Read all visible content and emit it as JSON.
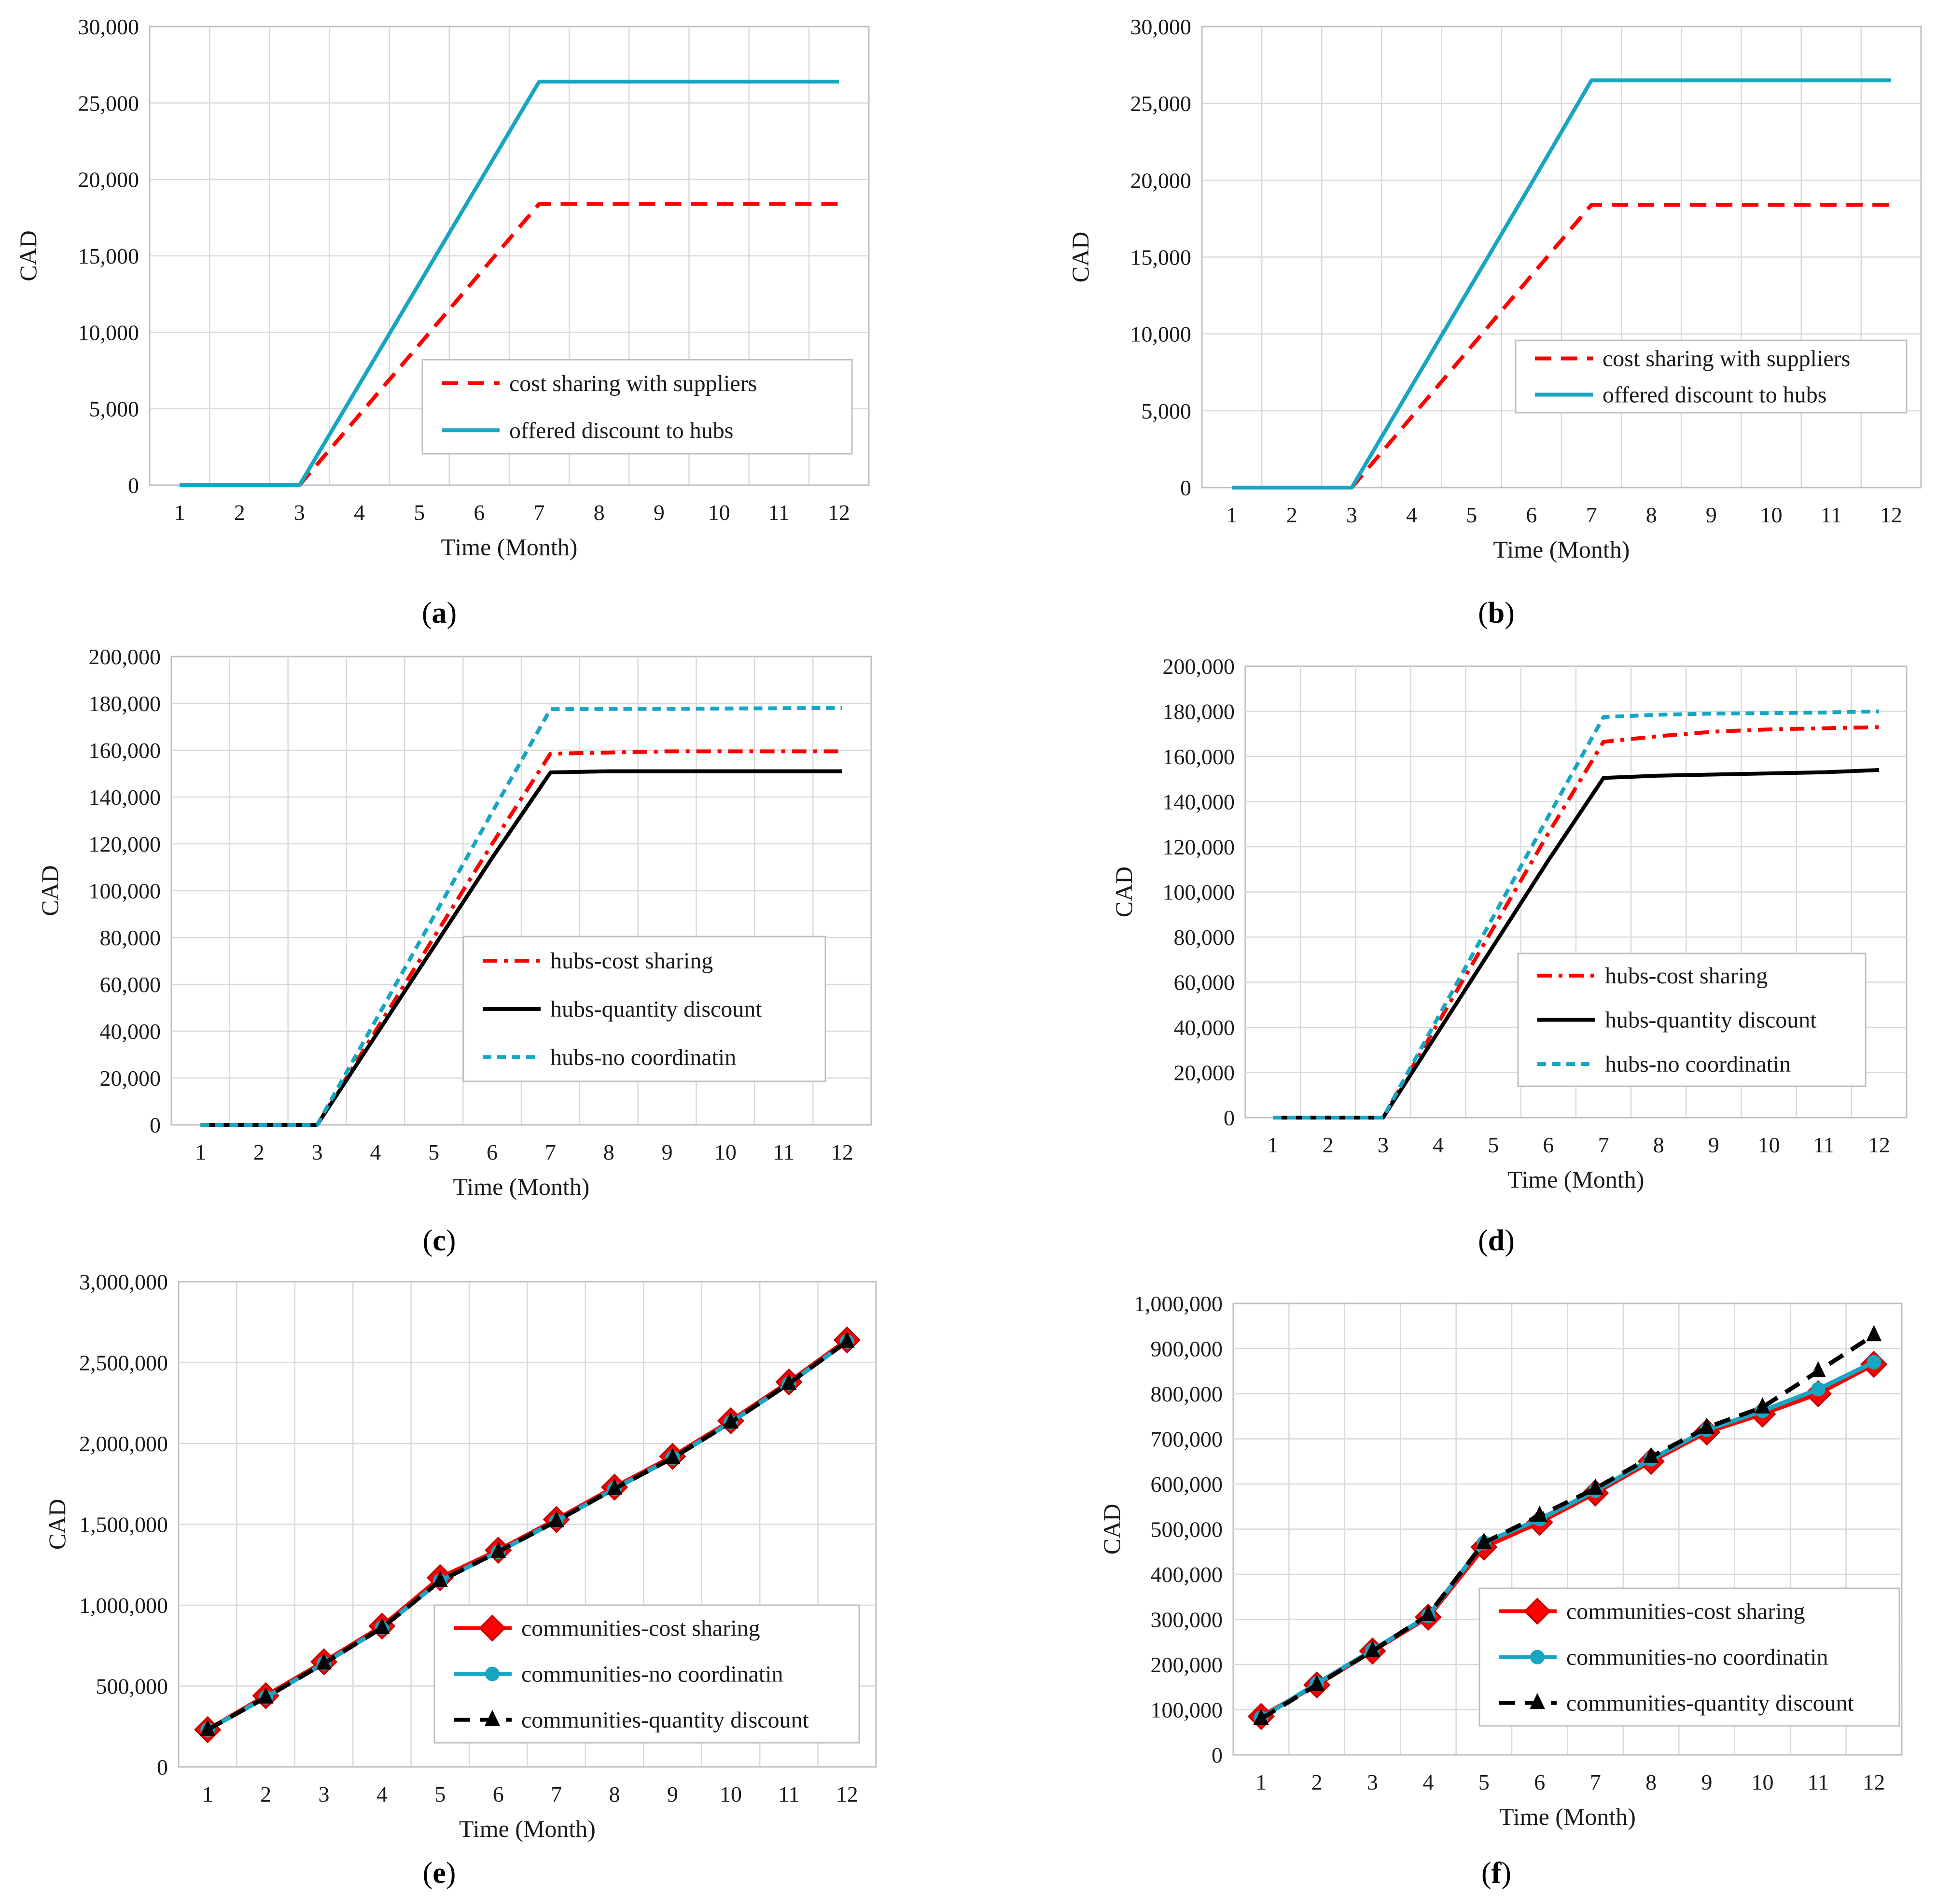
{
  "chart_data": [
    {
      "id": "a",
      "caption": "(a)",
      "caption_letter": "a",
      "type": "line",
      "xlabel": "Time (Month)",
      "ylabel": "CAD",
      "categories": [
        "1",
        "2",
        "3",
        "4",
        "5",
        "6",
        "7",
        "8",
        "9",
        "10",
        "11",
        "12"
      ],
      "ylim": [
        0,
        30000
      ],
      "yticks": [
        "0",
        "5,000",
        "10,000",
        "15,000",
        "20,000",
        "25,000",
        "30,000"
      ],
      "grid": true,
      "legend_position": "lower-right",
      "series": [
        {
          "name": "cost sharing with suppliers",
          "values": [
            0,
            0,
            0,
            4600,
            9200,
            13800,
            18400,
            18400,
            18400,
            18400,
            18400,
            18400
          ],
          "color": "#ff0000",
          "dash": "dashed",
          "marker": "none",
          "start_index": 2
        },
        {
          "name": "offered discount to hubs",
          "values": [
            0,
            0,
            0,
            6600,
            13200,
            19800,
            26400,
            26400,
            26400,
            26400,
            26400,
            26400
          ],
          "color": "#17a6c2",
          "dash": "solid",
          "marker": "none",
          "start_index": 0
        }
      ]
    },
    {
      "id": "b",
      "caption": "(b)",
      "caption_letter": "b",
      "type": "line",
      "xlabel": "Time (Month)",
      "ylabel": "CAD",
      "categories": [
        "1",
        "2",
        "3",
        "4",
        "5",
        "6",
        "7",
        "8",
        "9",
        "10",
        "11",
        "12"
      ],
      "ylim": [
        0,
        30000
      ],
      "yticks": [
        "0",
        "5,000",
        "10,000",
        "15,000",
        "20,000",
        "25,000",
        "30,000"
      ],
      "grid": true,
      "legend_position": "lower-right",
      "series": [
        {
          "name": "cost sharing with suppliers",
          "values": [
            0,
            0,
            0,
            4600,
            9200,
            13800,
            18400,
            18400,
            18400,
            18400,
            18400,
            18400
          ],
          "color": "#ff0000",
          "dash": "dashed",
          "marker": "none",
          "start_index": 2
        },
        {
          "name": "offered discount to hubs",
          "values": [
            0,
            0,
            0,
            6600,
            13200,
            19800,
            26500,
            26500,
            26500,
            26500,
            26500,
            26500
          ],
          "color": "#17a6c2",
          "dash": "solid",
          "marker": "none",
          "start_index": 0
        }
      ]
    },
    {
      "id": "c",
      "caption": "(c)",
      "caption_letter": "c",
      "type": "line",
      "xlabel": "Time (Month)",
      "ylabel": "CAD",
      "categories": [
        "1",
        "2",
        "3",
        "4",
        "5",
        "6",
        "7",
        "8",
        "9",
        "10",
        "11",
        "12"
      ],
      "ylim": [
        0,
        200000
      ],
      "yticks": [
        "0",
        "20,000",
        "40,000",
        "60,000",
        "80,000",
        "100,000",
        "120,000",
        "140,000",
        "160,000",
        "180,000",
        "200,000"
      ],
      "grid": true,
      "legend_position": "lower-right",
      "series": [
        {
          "name": "hubs-cost sharing",
          "values": [
            0,
            0,
            0,
            40000,
            80000,
            120000,
            158500,
            159000,
            159500,
            159500,
            159500,
            159500
          ],
          "color": "#ff0000",
          "dash": "dashdot",
          "marker": "none",
          "start_index": 0
        },
        {
          "name": "hubs-quantity discount",
          "values": [
            0,
            0,
            0,
            38000,
            76000,
            114000,
            150500,
            151000,
            151000,
            151000,
            151000,
            151000
          ],
          "color": "#000000",
          "dash": "solid",
          "marker": "none",
          "start_index": 0
        },
        {
          "name": "hubs-no coordinatin",
          "values": [
            0,
            0,
            0,
            44500,
            89000,
            133500,
            177500,
            177600,
            177700,
            177800,
            177900,
            178000
          ],
          "color": "#17a6c2",
          "dash": "dotted",
          "marker": "none",
          "start_index": 0
        }
      ]
    },
    {
      "id": "d",
      "caption": "(d)",
      "caption_letter": "d",
      "type": "line",
      "xlabel": "Time (Month)",
      "ylabel": "CAD",
      "categories": [
        "1",
        "2",
        "3",
        "4",
        "5",
        "6",
        "7",
        "8",
        "9",
        "10",
        "11",
        "12"
      ],
      "ylim": [
        0,
        200000
      ],
      "yticks": [
        "0",
        "20,000",
        "40,000",
        "60,000",
        "80,000",
        "100,000",
        "120,000",
        "140,000",
        "160,000",
        "180,000",
        "200,000"
      ],
      "grid": true,
      "legend_position": "lower-right",
      "series": [
        {
          "name": "hubs-cost sharing",
          "values": [
            0,
            0,
            0,
            42000,
            84000,
            126000,
            166500,
            169000,
            171000,
            172000,
            172500,
            173000
          ],
          "color": "#ff0000",
          "dash": "dashdot",
          "marker": "none",
          "start_index": 0
        },
        {
          "name": "hubs-quantity discount",
          "values": [
            0,
            0,
            0,
            38000,
            76000,
            114000,
            150500,
            151500,
            152000,
            152500,
            153000,
            154000
          ],
          "color": "#000000",
          "dash": "solid",
          "marker": "none",
          "start_index": 0
        },
        {
          "name": "hubs-no coordinatin",
          "values": [
            0,
            0,
            0,
            44500,
            89000,
            133500,
            177500,
            178500,
            179000,
            179200,
            179500,
            180000
          ],
          "color": "#17a6c2",
          "dash": "dotted",
          "marker": "none",
          "start_index": 0
        }
      ]
    },
    {
      "id": "e",
      "caption": "(e)",
      "caption_letter": "e",
      "type": "line",
      "xlabel": "Time (Month)",
      "ylabel": "CAD",
      "categories": [
        "1",
        "2",
        "3",
        "4",
        "5",
        "6",
        "7",
        "8",
        "9",
        "10",
        "11",
        "12"
      ],
      "ylim": [
        0,
        3000000
      ],
      "yticks": [
        "0",
        "500,000",
        "1,000,000",
        "1,500,000",
        "2,000,000",
        "2,500,000",
        "3,000,000"
      ],
      "grid": true,
      "legend_position": "lower-right",
      "series": [
        {
          "name": "communities-cost sharing",
          "values": [
            230000,
            440000,
            650000,
            870000,
            1170000,
            1340000,
            1530000,
            1730000,
            1920000,
            2140000,
            2380000,
            2640000
          ],
          "color": "#ff0000",
          "dash": "solid",
          "marker": "diamond",
          "start_index": 0
        },
        {
          "name": "communities-no coordinatin",
          "values": [
            230000,
            430000,
            640000,
            860000,
            1150000,
            1330000,
            1520000,
            1720000,
            1910000,
            2130000,
            2370000,
            2630000
          ],
          "color": "#17a6c2",
          "dash": "solid",
          "marker": "circle",
          "start_index": 0
        },
        {
          "name": "communities-quantity discount",
          "values": [
            230000,
            430000,
            640000,
            860000,
            1150000,
            1330000,
            1520000,
            1720000,
            1910000,
            2130000,
            2370000,
            2630000
          ],
          "color": "#000000",
          "dash": "dashed",
          "marker": "triangle",
          "start_index": 0
        }
      ]
    },
    {
      "id": "f",
      "caption": "(f)",
      "caption_letter": "f",
      "type": "line",
      "xlabel": "Time (Month)",
      "ylabel": "CAD",
      "categories": [
        "1",
        "2",
        "3",
        "4",
        "5",
        "6",
        "7",
        "8",
        "9",
        "10",
        "11",
        "12"
      ],
      "ylim": [
        0,
        1000000
      ],
      "yticks": [
        "0",
        "100,000",
        "200,000",
        "300,000",
        "400,000",
        "500,000",
        "600,000",
        "700,000",
        "800,000",
        "900,000",
        "1,000,000"
      ],
      "grid": true,
      "legend_position": "lower-right",
      "series": [
        {
          "name": "communities-cost sharing",
          "values": [
            85000,
            155000,
            230000,
            305000,
            460000,
            515000,
            580000,
            650000,
            715000,
            755000,
            800000,
            865000
          ],
          "color": "#ff0000",
          "dash": "solid",
          "marker": "diamond",
          "start_index": 0
        },
        {
          "name": "communities-no coordinatin",
          "values": [
            82000,
            158000,
            232000,
            308000,
            470000,
            522000,
            585000,
            655000,
            720000,
            762000,
            810000,
            870000
          ],
          "color": "#17a6c2",
          "dash": "solid",
          "marker": "circle",
          "start_index": 0
        },
        {
          "name": "communities-quantity discount",
          "values": [
            80000,
            155000,
            230000,
            310000,
            470000,
            530000,
            590000,
            660000,
            725000,
            770000,
            850000,
            930000
          ],
          "color": "#000000",
          "dash": "dashed",
          "marker": "triangle",
          "start_index": 0
        }
      ]
    }
  ]
}
